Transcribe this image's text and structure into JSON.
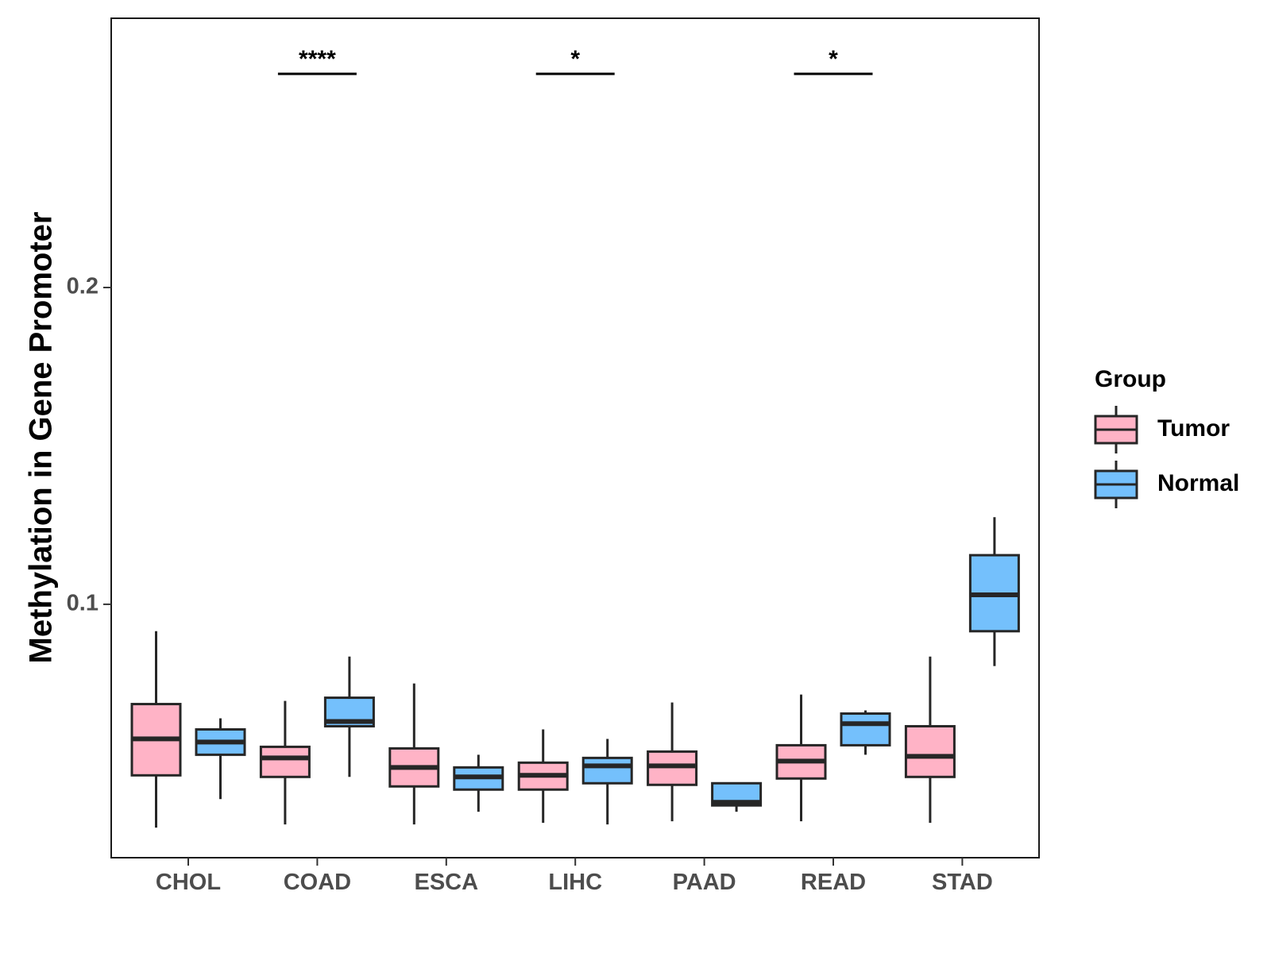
{
  "chart_data": {
    "type": "boxplot",
    "title": "",
    "xlabel": "",
    "ylabel": "Methylation in Gene Promoter",
    "ylim": [
      0.02,
      0.285
    ],
    "yticks": [
      0.1,
      0.2
    ],
    "ytick_labels": [
      "0.1",
      "0.2"
    ],
    "grid": false,
    "categories": [
      "CHOL",
      "COAD",
      "ESCA",
      "LIHC",
      "PAAD",
      "READ",
      "STAD"
    ],
    "legend": {
      "title": "Group",
      "placement": "right",
      "entries": [
        {
          "name": "Tumor",
          "color": "#ffb3c6"
        },
        {
          "name": "Normal",
          "color": "#74c0fc"
        }
      ]
    },
    "series": [
      {
        "name": "Tumor",
        "color": "#ffb3c6",
        "boxes": [
          {
            "min": 0.0295,
            "q1": 0.046,
            "median": 0.0575,
            "q3": 0.0685,
            "max": 0.0915
          },
          {
            "min": 0.0305,
            "q1": 0.0455,
            "median": 0.0515,
            "q3": 0.055,
            "max": 0.0695
          },
          {
            "min": 0.0305,
            "q1": 0.0425,
            "median": 0.0485,
            "q3": 0.0545,
            "max": 0.075
          },
          {
            "min": 0.031,
            "q1": 0.0415,
            "median": 0.046,
            "q3": 0.05,
            "max": 0.0605
          },
          {
            "min": 0.0315,
            "q1": 0.043,
            "median": 0.049,
            "q3": 0.0535,
            "max": 0.069
          },
          {
            "min": 0.0315,
            "q1": 0.045,
            "median": 0.0505,
            "q3": 0.0555,
            "max": 0.0715
          },
          {
            "min": 0.031,
            "q1": 0.0455,
            "median": 0.052,
            "q3": 0.0615,
            "max": 0.0835
          }
        ]
      },
      {
        "name": "Normal",
        "color": "#74c0fc",
        "boxes": [
          {
            "min": 0.0385,
            "q1": 0.0525,
            "median": 0.0565,
            "q3": 0.0605,
            "max": 0.064
          },
          {
            "min": 0.0455,
            "q1": 0.0615,
            "median": 0.063,
            "q3": 0.0705,
            "max": 0.0835
          },
          {
            "min": 0.0345,
            "q1": 0.0415,
            "median": 0.0455,
            "q3": 0.0485,
            "max": 0.0525
          },
          {
            "min": 0.0305,
            "q1": 0.0435,
            "median": 0.049,
            "q3": 0.0515,
            "max": 0.0575
          },
          {
            "min": 0.0345,
            "q1": 0.0365,
            "median": 0.0375,
            "q3": 0.0435,
            "max": 0.0435
          },
          {
            "min": 0.0525,
            "q1": 0.0555,
            "median": 0.0623,
            "q3": 0.0655,
            "max": 0.0665
          },
          {
            "min": 0.0805,
            "q1": 0.0915,
            "median": 0.103,
            "q3": 0.1155,
            "max": 0.1275
          }
        ]
      }
    ],
    "annotations": [
      {
        "category": "COAD",
        "label": "****"
      },
      {
        "category": "LIHC",
        "label": "*"
      },
      {
        "category": "READ",
        "label": "*"
      }
    ]
  }
}
